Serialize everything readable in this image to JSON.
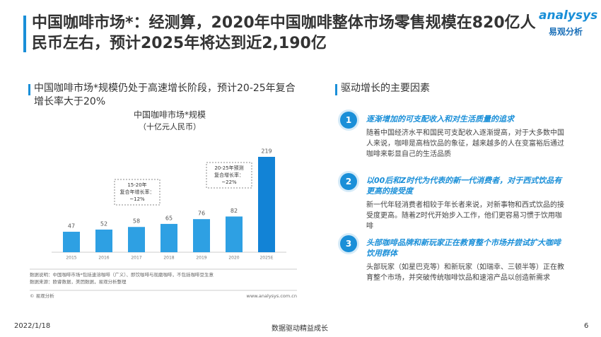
{
  "header": {
    "title": "中国咖啡市场*：经测算，2020年中国咖啡整体市场零售规模在820亿人民币左右，预计2025年将达到近2,190亿",
    "logo": "analysys",
    "logo_cn": "易观分析"
  },
  "left": {
    "heading": "中国咖啡市场*规模仍处于高速增长阶段，预计20-25年复合增长率大于20%"
  },
  "chart_data": {
    "type": "bar",
    "title": "中国咖啡市场*规模",
    "subtitle": "（十亿元人民币）",
    "categories": [
      "2015",
      "2016",
      "2017",
      "2018",
      "2019",
      "2020",
      "2025E"
    ],
    "values": [
      47,
      52,
      58,
      65,
      76,
      82,
      219
    ],
    "color": "#2ea0e3",
    "highlight_color": "#1283d6",
    "annotations": [
      {
        "lines": [
          "15-20年",
          "复合年增长率：",
          "~12%"
        ]
      },
      {
        "lines": [
          "20-25年预测",
          "复合增长率：",
          "~22%"
        ]
      }
    ],
    "notes": [
      "数据说明：中国咖啡市场*包括速溶咖啡（广义）、即饮咖啡与现磨咖啡，不包括咖啡豆生意",
      "数据来源：欧睿数据，美团数据，易观分析整理"
    ],
    "source": "© 易观分析",
    "url": "www.analysys.com.cn"
  },
  "right": {
    "heading": "驱动增长的主要因素",
    "factors": [
      {
        "number": "1",
        "title": "逐渐增加的可支配收入和对生活质量的追求",
        "body": "随着中国经济水平和国民可支配收入逐渐提高，对于大多数中国人来说，咖啡是高档饮品的象征，越来越多的人在变富裕后通过咖啡来彰显自己的生活品质"
      },
      {
        "number": "2",
        "title": "以00后和Z时代为代表的新一代消费者，对于西式饮品有更高的接受度",
        "body": "新一代年轻消费者相较于年长者来说，对新事物和西式饮品的接受度更高。随着Z时代开始步入工作，他们更容易习惯于饮用咖啡"
      },
      {
        "number": "3",
        "title": "头部咖啡品牌和新玩家正在教育整个市场并尝试扩大咖啡饮用群体",
        "body": "头部玩家（如星巴克等）和新玩家（如瑞幸、三顿半等）正在教育整个市场，并突破传统咖啡饮品和速溶产品以创造新需求"
      }
    ]
  },
  "footer": {
    "date": "2022/1/18",
    "slogan": "数据驱动精益成长",
    "page": "6"
  }
}
